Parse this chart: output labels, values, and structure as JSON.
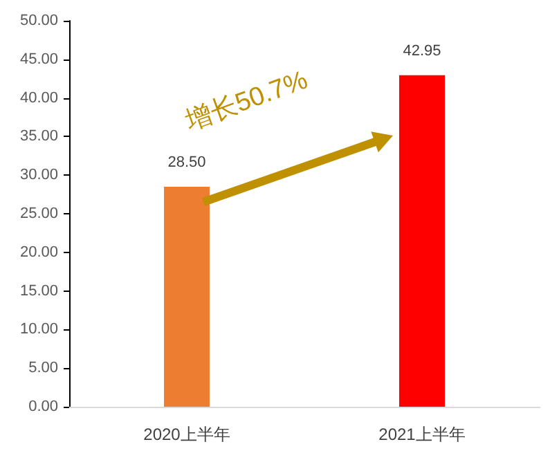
{
  "chart_data": {
    "type": "bar",
    "categories": [
      "2020上半年",
      "2021上半年"
    ],
    "values": [
      28.5,
      42.95
    ],
    "value_labels": [
      "28.50",
      "42.95"
    ],
    "colors": [
      "#ed7d31",
      "#ff0000"
    ],
    "ylim": [
      0,
      50
    ],
    "yticks": [
      {
        "value": 0,
        "label": "0.00"
      },
      {
        "value": 5,
        "label": "5.00"
      },
      {
        "value": 10,
        "label": "10.00"
      },
      {
        "value": 15,
        "label": "15.00"
      },
      {
        "value": 20,
        "label": "20.00"
      },
      {
        "value": 25,
        "label": "25.00"
      },
      {
        "value": 30,
        "label": "30.00"
      },
      {
        "value": 35,
        "label": "35.00"
      },
      {
        "value": 40,
        "label": "40.00"
      },
      {
        "value": 45,
        "label": "45.00"
      },
      {
        "value": 50,
        "label": "50.00"
      }
    ],
    "annotations": [
      "增长50.7%"
    ],
    "grid": false
  }
}
